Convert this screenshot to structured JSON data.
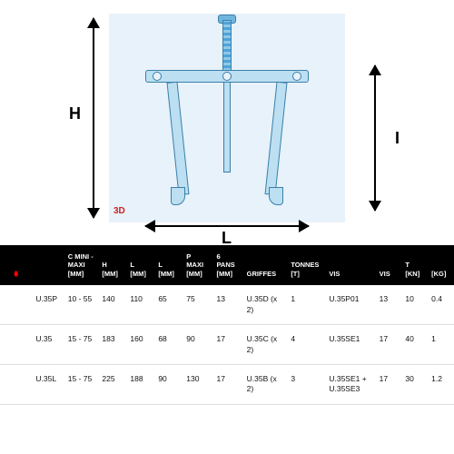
{
  "diagram": {
    "labels": {
      "H": "H",
      "I": "I",
      "L": "L"
    },
    "logo": "3D",
    "colors": {
      "blueprint_bg": "#e8f2fa",
      "line_dark": "#3a7fa8",
      "fill_light": "#bcdff2",
      "dim_color": "#000000"
    }
  },
  "table": {
    "header_bg": "#000000",
    "header_fg": "#ffffff",
    "ref_color": "#d00000",
    "row_border": "#dddddd",
    "columns": [
      {
        "key": "icon",
        "label": "⬮"
      },
      {
        "key": "ref",
        "label": ""
      },
      {
        "key": "cmini",
        "label": "C MINI - MAXI [MM]"
      },
      {
        "key": "h",
        "label": "H [MM]"
      },
      {
        "key": "l1",
        "label": "L [MM]"
      },
      {
        "key": "l2",
        "label": "L [MM]"
      },
      {
        "key": "pmax",
        "label": "P MAXI [MM]"
      },
      {
        "key": "6pans",
        "label": "6 PANS [MM]"
      },
      {
        "key": "griffes",
        "label": "GRIFFES"
      },
      {
        "key": "tonnes",
        "label": "TONNES [T]"
      },
      {
        "key": "vis1",
        "label": "VIS"
      },
      {
        "key": "vis2",
        "label": "VIS"
      },
      {
        "key": "tkn",
        "label": "T [KN]"
      },
      {
        "key": "kg",
        "label": "[KG]"
      }
    ],
    "rows": [
      {
        "ref": "U.35P",
        "cmini": "10 - 55",
        "h": "140",
        "l1": "110",
        "l2": "65",
        "pmax": "75",
        "6pans": "13",
        "griffes": "U.35D (x 2)",
        "tonnes": "1",
        "vis1": "U.35P01",
        "vis2": "13",
        "tkn": "10",
        "kg": "0.4"
      },
      {
        "ref": "U.35",
        "cmini": "15 - 75",
        "h": "183",
        "l1": "160",
        "l2": "68",
        "pmax": "90",
        "6pans": "17",
        "griffes": "U.35C (x 2)",
        "tonnes": "4",
        "vis1": "U.35SE1",
        "vis2": "17",
        "tkn": "40",
        "kg": "1"
      },
      {
        "ref": "U.35L",
        "cmini": "15 - 75",
        "h": "225",
        "l1": "188",
        "l2": "90",
        "pmax": "130",
        "6pans": "17",
        "griffes": "U.35B (x 2)",
        "tonnes": "3",
        "vis1": "U.35SE1 + U.35SE3",
        "vis2": "17",
        "tkn": "30",
        "kg": "1.2"
      }
    ]
  }
}
